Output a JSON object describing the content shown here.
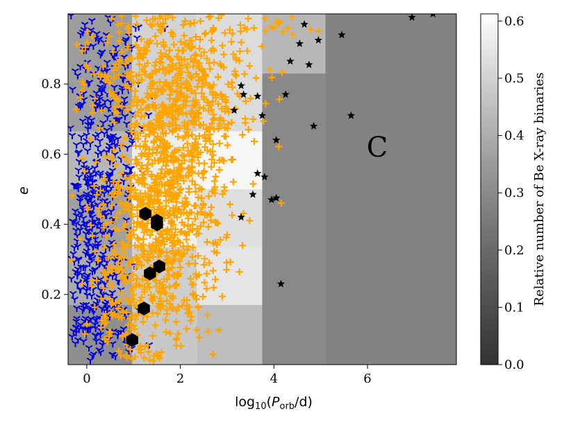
{
  "chart_data": {
    "type": "scatter",
    "title": "",
    "xlabel": "log10(P_orb/d)",
    "ylabel": "e",
    "xlim": [
      -0.4,
      7.9
    ],
    "ylim": [
      0.0,
      1.0
    ],
    "x_ticks": [
      0,
      2,
      4,
      6
    ],
    "y_ticks": [
      0.2,
      0.4,
      0.6,
      0.8
    ],
    "region_label": "C",
    "colorbar": {
      "label": "Relative number of Be X-ray binaries",
      "range": [
        0.0,
        0.6125
      ],
      "ticks": [
        0.0,
        0.1,
        0.2,
        0.3,
        0.4,
        0.5,
        0.6
      ],
      "cmap": "gray",
      "position": "right"
    },
    "background_grid": {
      "x_edges": [
        -0.4,
        0.97,
        2.35,
        3.75,
        5.1,
        7.9
      ],
      "y_edges": [
        0.0,
        0.17,
        0.335,
        0.5,
        0.665,
        0.83,
        1.0
      ],
      "values": [
        [
          0.22,
          0.42,
          0.38,
          0.2,
          0.18
        ],
        [
          0.32,
          0.44,
          0.52,
          0.2,
          0.18
        ],
        [
          0.28,
          0.56,
          0.5,
          0.2,
          0.18
        ],
        [
          0.36,
          0.55,
          0.58,
          0.2,
          0.18
        ],
        [
          0.27,
          0.44,
          0.49,
          0.2,
          0.18
        ],
        [
          0.27,
          0.46,
          0.49,
          0.36,
          0.18
        ]
      ]
    },
    "series": [
      {
        "marker": "tri-down",
        "color": "#0000dd",
        "clusters": [
          {
            "cx": 0.05,
            "cy": 0.35,
            "sx": 0.3,
            "sy": 0.2,
            "n": 300
          },
          {
            "cx": 0.55,
            "cy": 0.62,
            "sx": 0.35,
            "sy": 0.22,
            "n": 170
          },
          {
            "cx": 0.25,
            "cy": 0.88,
            "sx": 0.45,
            "sy": 0.1,
            "n": 70
          },
          {
            "cx": 0.4,
            "cy": 0.12,
            "sx": 0.3,
            "sy": 0.08,
            "n": 60
          }
        ]
      },
      {
        "marker": "plus",
        "color": "#ffa500",
        "clusters": [
          {
            "cx": 1.7,
            "cy": 0.5,
            "sx": 0.6,
            "sy": 0.22,
            "n": 900
          },
          {
            "cx": 1.6,
            "cy": 0.86,
            "sx": 0.9,
            "sy": 0.1,
            "n": 260
          },
          {
            "cx": 2.6,
            "cy": 0.72,
            "sx": 0.55,
            "sy": 0.12,
            "n": 120
          },
          {
            "cx": 0.9,
            "cy": 0.25,
            "sx": 0.5,
            "sy": 0.15,
            "n": 220
          },
          {
            "cx": 3.3,
            "cy": 0.97,
            "sx": 0.8,
            "sy": 0.03,
            "n": 40
          }
        ]
      }
    ],
    "stars": [
      [
        6.95,
        0.99
      ],
      [
        7.4,
        1.0
      ],
      [
        4.65,
        0.97
      ],
      [
        4.55,
        0.915
      ],
      [
        4.95,
        0.925
      ],
      [
        5.45,
        0.94
      ],
      [
        4.35,
        0.865
      ],
      [
        4.75,
        0.855
      ],
      [
        3.3,
        0.795
      ],
      [
        3.35,
        0.77
      ],
      [
        3.65,
        0.765
      ],
      [
        4.25,
        0.77
      ],
      [
        3.15,
        0.725
      ],
      [
        3.75,
        0.71
      ],
      [
        4.85,
        0.68
      ],
      [
        5.65,
        0.71
      ],
      [
        4.05,
        0.64
      ],
      [
        3.65,
        0.545
      ],
      [
        3.8,
        0.535
      ],
      [
        3.55,
        0.485
      ],
      [
        3.95,
        0.47
      ],
      [
        4.05,
        0.475
      ],
      [
        3.3,
        0.42
      ],
      [
        4.15,
        0.23
      ]
    ],
    "hexagons": [
      [
        1.25,
        0.43
      ],
      [
        1.5,
        0.41
      ],
      [
        1.5,
        0.4
      ],
      [
        1.55,
        0.28
      ],
      [
        1.35,
        0.26
      ],
      [
        1.22,
        0.16
      ],
      [
        0.97,
        0.07
      ]
    ]
  }
}
